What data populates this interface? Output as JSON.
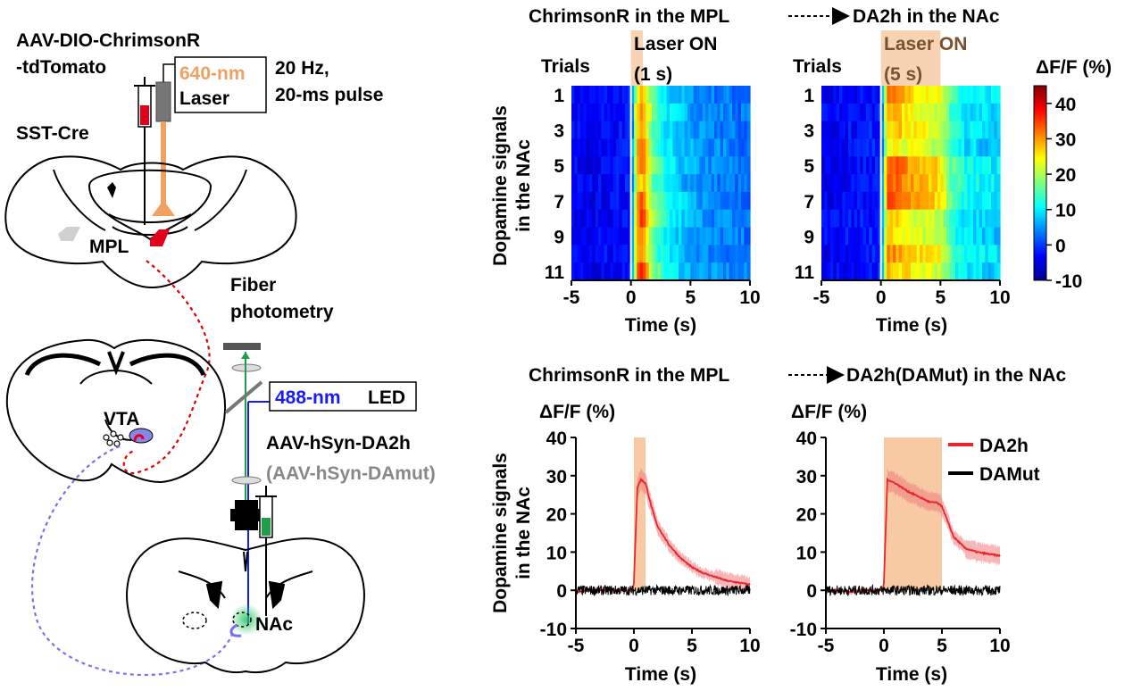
{
  "schematic": {
    "virus_top_line1": "AAV-DIO-ChrimsonR",
    "virus_top_line2": "-tdTomato",
    "laser_nm": "640-nm",
    "laser_word": "Laser",
    "stim_line1": "20 Hz,",
    "stim_line2": "20-ms pulse",
    "mouse_line": "SST-Cre",
    "mpl_label": "MPL",
    "vta_label": "VTA",
    "fiber_line1": "Fiber",
    "fiber_line2": "photometry",
    "led_nm": "488-nm",
    "led_word": "LED",
    "sensor_virus": "AAV-hSyn-DA2h",
    "control_virus": "(AAV-hSyn-DAmut)",
    "nac_label": "NAc",
    "colors": {
      "laser": "#f0a060",
      "chrimson_red": "#e3001b",
      "led_blue": "#1a1aff",
      "fiber_green": "#1f9e4a",
      "projection_red": "#e00000",
      "projection_blue": "#7a6ff0"
    }
  },
  "top_panel": {
    "header_left": "ChrimsonR in the MPL",
    "header_right": "DA2h in the NAc",
    "ylabel_line1": "Dopamine signals",
    "ylabel_line2": "in the NAc",
    "trials_label": "Trials",
    "laser_on_1": "Laser ON",
    "laser_dur_1": "(1 s)",
    "laser_on_2": "Laser ON",
    "laser_dur_2": "(5 s)",
    "colorbar_title": "ΔF/F (%)",
    "xlabel": "Time (s)"
  },
  "bottom_panel": {
    "header_left": "ChrimsonR in the MPL",
    "header_right": "DA2h(DAMut) in the NAc",
    "ylabel_line1": "Dopamine signals",
    "ylabel_line2": "in the NAc",
    "yunit_1": "ΔF/F (%)",
    "yunit_2": "ΔF/F (%)",
    "xlabel": "Time (s)"
  },
  "chart_data": [
    {
      "type": "heatmap",
      "title": "",
      "xlabel": "Time (s)",
      "ylabel": "Trials",
      "xlim": [
        -5,
        10
      ],
      "x_ticks": [
        -5,
        0,
        5,
        10
      ],
      "y_ticks": [
        1,
        3,
        5,
        7,
        9,
        11
      ],
      "n_trials": 11,
      "stim_window": [
        0,
        1
      ],
      "colorbar": {
        "label": "ΔF/F (%)",
        "min": -10,
        "max": 45,
        "ticks": [
          40,
          30,
          20,
          10,
          0,
          -10
        ]
      },
      "time_points": [
        -5,
        -4,
        -3,
        -2,
        -1,
        0,
        0.5,
        1,
        1.5,
        2,
        3,
        4,
        5,
        6,
        7,
        8,
        9,
        10
      ],
      "mean_profile": [
        -4,
        -4,
        -4,
        -3,
        -3,
        -2,
        28,
        32,
        22,
        16,
        10,
        8,
        6,
        5,
        4,
        4,
        3,
        3
      ]
    },
    {
      "type": "heatmap",
      "title": "",
      "xlabel": "Time (s)",
      "ylabel": "Trials",
      "xlim": [
        -5,
        10
      ],
      "x_ticks": [
        -5,
        0,
        5,
        10
      ],
      "y_ticks": [
        1,
        3,
        5,
        7,
        9,
        11
      ],
      "n_trials": 11,
      "stim_window": [
        0,
        5
      ],
      "colorbar": {
        "label": "ΔF/F (%)",
        "min": -10,
        "max": 45,
        "ticks": [
          40,
          30,
          20,
          10,
          0,
          -10
        ]
      },
      "time_points": [
        -5,
        -4,
        -3,
        -2,
        -1,
        0,
        0.5,
        1,
        2,
        3,
        4,
        5,
        6,
        7,
        8,
        9,
        10
      ],
      "mean_profile": [
        -4,
        -4,
        -3,
        -3,
        -2,
        -2,
        30,
        30,
        28,
        26,
        25,
        24,
        14,
        11,
        10,
        9,
        9
      ]
    },
    {
      "type": "line",
      "title": "",
      "xlabel": "Time (s)",
      "ylabel": "ΔF/F (%)",
      "xlim": [
        -5,
        10
      ],
      "ylim": [
        -10,
        40
      ],
      "x_ticks": [
        -5,
        0,
        5,
        10
      ],
      "y_ticks": [
        -10,
        0,
        10,
        20,
        30,
        40
      ],
      "stim_window": [
        0,
        1
      ],
      "series": [
        {
          "name": "DA2h",
          "color": "#e8262c",
          "x": [
            -5,
            -4,
            -3,
            -2,
            -1,
            -0.1,
            0,
            0.3,
            0.6,
            1,
            1.5,
            2,
            3,
            4,
            5,
            6,
            7,
            8,
            9,
            10
          ],
          "y": [
            -0.5,
            0,
            0,
            0,
            0,
            0,
            2,
            27,
            29,
            28,
            22,
            17,
            12,
            8.5,
            6,
            4.5,
            3.5,
            2.5,
            2,
            1.5
          ]
        },
        {
          "name": "DAMut",
          "color": "#000000",
          "x": [
            -5,
            -2.5,
            0,
            2.5,
            5,
            7.5,
            10
          ],
          "y": [
            0,
            0,
            0,
            0,
            0,
            0,
            0
          ]
        }
      ]
    },
    {
      "type": "line",
      "title": "",
      "xlabel": "Time (s)",
      "ylabel": "ΔF/F (%)",
      "xlim": [
        -5,
        10
      ],
      "ylim": [
        -10,
        40
      ],
      "x_ticks": [
        -5,
        0,
        5,
        10
      ],
      "y_ticks": [
        -10,
        0,
        10,
        20,
        30,
        40
      ],
      "stim_window": [
        0,
        5
      ],
      "legend": {
        "position": "top-right",
        "entries": [
          "DA2h",
          "DAMut"
        ]
      },
      "series": [
        {
          "name": "DA2h",
          "color": "#e8262c",
          "x": [
            -5,
            -4,
            -3,
            -2,
            -1,
            -0.1,
            0,
            0.3,
            1,
            2,
            3,
            4,
            4.5,
            5,
            5.5,
            6,
            7,
            8,
            9,
            10
          ],
          "y": [
            0,
            0,
            -0.5,
            0,
            0,
            0,
            2,
            29,
            28,
            26,
            24.5,
            23,
            23,
            22,
            18,
            14,
            11,
            10,
            9.5,
            9
          ]
        },
        {
          "name": "DAMut",
          "color": "#000000",
          "x": [
            -5,
            -2.5,
            0,
            2.5,
            5,
            7.5,
            10
          ],
          "y": [
            0,
            0,
            0,
            0,
            0,
            0,
            0
          ]
        }
      ]
    }
  ]
}
